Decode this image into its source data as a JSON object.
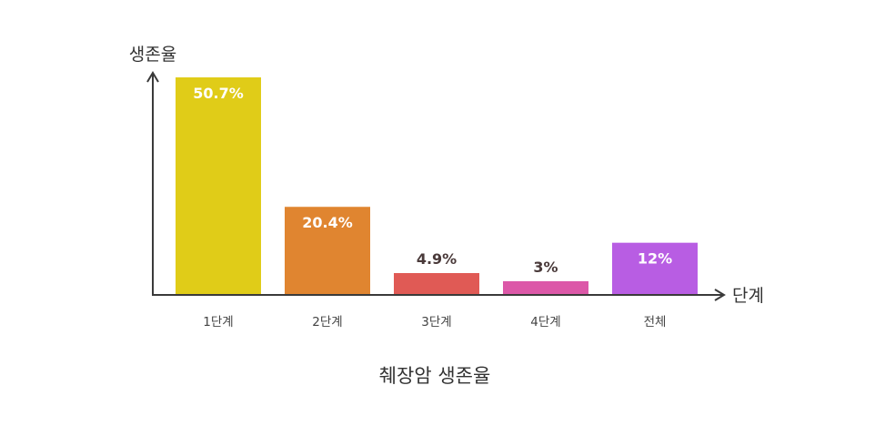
{
  "chart_data": {
    "type": "bar",
    "title": "췌장암 생존율",
    "xlabel": "단계",
    "ylabel": "생존율",
    "categories": [
      "1단계",
      "2단계",
      "3단계",
      "4단계",
      "전체"
    ],
    "values": [
      50.7,
      20.4,
      4.9,
      3,
      12
    ],
    "value_labels": [
      "50.7%",
      "20.4%",
      "4.9%",
      "3%",
      "12%"
    ],
    "colors": [
      "#E0CC18",
      "#E08530",
      "#E05A55",
      "#DC58A8",
      "#B85DE3"
    ],
    "label_inside": [
      true,
      true,
      false,
      false,
      true
    ],
    "ylim": [
      0,
      50.7
    ],
    "grid": false,
    "legend": "none"
  }
}
